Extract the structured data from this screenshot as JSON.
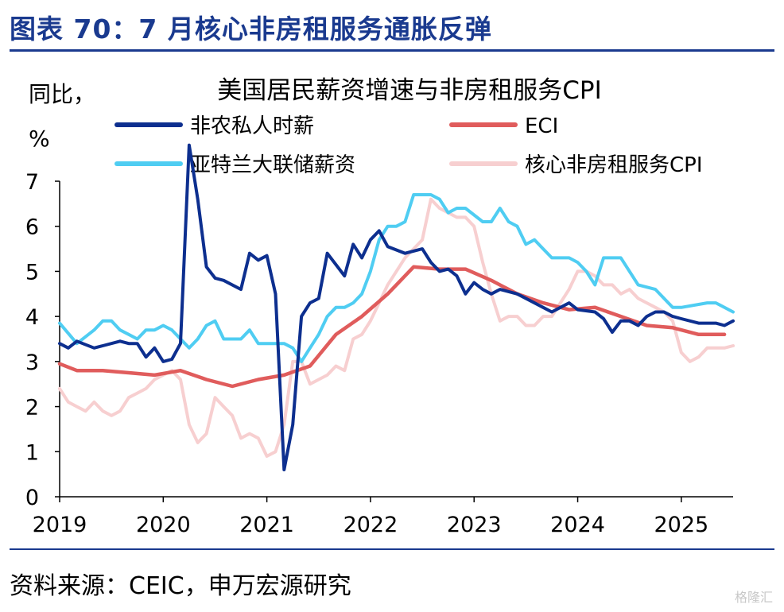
{
  "figure": {
    "title": "图表 70：7 月核心非房租服务通胀反弹",
    "source": "资料来源：CEIC，申万宏源研究",
    "watermark": "格隆汇"
  },
  "chart_data": {
    "type": "line",
    "title": "美国居民薪资增速与非房租服务CPI",
    "ylabel": "同比，%",
    "ylabel_lines": [
      "同比，",
      "%"
    ],
    "xlabel": "",
    "xlim": [
      "2019-01",
      "2025-07"
    ],
    "ylim": [
      0,
      7
    ],
    "y_ticks": [
      "0",
      "1",
      "2",
      "3",
      "4",
      "5",
      "6",
      "7"
    ],
    "x_ticks": [
      "2019",
      "2020",
      "2021",
      "2022",
      "2023",
      "2024",
      "2025"
    ],
    "grid": false,
    "legend_position": "top",
    "series": [
      {
        "name": "非农私人时薪",
        "color": "#0d2f8f",
        "x": [
          "2019-01",
          "2019-02",
          "2019-03",
          "2019-05",
          "2019-06",
          "2019-08",
          "2019-09",
          "2019-10",
          "2019-11",
          "2019-12",
          "2020-01",
          "2020-02",
          "2020-03",
          "2020-04",
          "2020-05",
          "2020-06",
          "2020-07",
          "2020-08",
          "2020-10",
          "2020-11",
          "2020-12",
          "2021-01",
          "2021-02",
          "2021-03",
          "2021-04",
          "2021-05",
          "2021-06",
          "2021-07",
          "2021-08",
          "2021-10",
          "2021-11",
          "2021-12",
          "2022-01",
          "2022-02",
          "2022-03",
          "2022-05",
          "2022-07",
          "2022-08",
          "2022-09",
          "2022-10",
          "2022-11",
          "2022-12",
          "2023-01",
          "2023-02",
          "2023-03",
          "2023-04",
          "2023-06",
          "2023-09",
          "2023-10",
          "2023-12",
          "2024-01",
          "2024-03",
          "2024-04",
          "2024-05",
          "2024-06",
          "2024-07",
          "2024-08",
          "2024-09",
          "2024-10",
          "2024-11",
          "2024-12",
          "2025-01",
          "2025-03",
          "2025-05",
          "2025-06",
          "2025-07"
        ],
        "values": [
          3.4,
          3.3,
          3.45,
          3.3,
          3.35,
          3.45,
          3.4,
          3.4,
          3.1,
          3.3,
          3.0,
          3.05,
          3.4,
          7.8,
          6.6,
          5.1,
          4.85,
          4.8,
          4.6,
          5.4,
          5.25,
          5.35,
          4.5,
          0.6,
          1.6,
          4.0,
          4.3,
          4.4,
          5.4,
          4.9,
          5.6,
          5.3,
          5.7,
          5.9,
          5.55,
          5.4,
          5.5,
          5.2,
          5.0,
          5.05,
          4.9,
          4.5,
          4.75,
          4.6,
          4.5,
          4.6,
          4.5,
          4.2,
          4.1,
          4.3,
          4.15,
          4.1,
          3.95,
          3.65,
          3.9,
          3.9,
          3.8,
          4.0,
          4.1,
          4.1,
          4.0,
          3.95,
          3.85,
          3.85,
          3.8,
          3.9
        ]
      },
      {
        "name": "ECI",
        "color": "#e05c5c",
        "x": [
          "2019-01",
          "2019-03",
          "2019-06",
          "2019-09",
          "2019-12",
          "2020-03",
          "2020-06",
          "2020-09",
          "2020-12",
          "2021-03",
          "2021-06",
          "2021-09",
          "2021-12",
          "2022-03",
          "2022-06",
          "2022-09",
          "2022-12",
          "2023-03",
          "2023-06",
          "2023-09",
          "2023-12",
          "2024-03",
          "2024-06",
          "2024-09",
          "2024-12",
          "2025-03",
          "2025-06"
        ],
        "values": [
          2.95,
          2.8,
          2.8,
          2.75,
          2.7,
          2.8,
          2.6,
          2.45,
          2.6,
          2.7,
          2.9,
          3.6,
          4.0,
          4.5,
          5.1,
          5.05,
          5.05,
          4.8,
          4.5,
          4.3,
          4.15,
          4.2,
          4.0,
          3.8,
          3.75,
          3.6,
          3.6
        ]
      },
      {
        "name": "亚特兰大联储薪资",
        "color": "#4fcdf2",
        "x": [
          "2019-01",
          "2019-03",
          "2019-05",
          "2019-06",
          "2019-07",
          "2019-08",
          "2019-09",
          "2019-10",
          "2019-11",
          "2019-12",
          "2020-01",
          "2020-02",
          "2020-04",
          "2020-05",
          "2020-06",
          "2020-07",
          "2020-08",
          "2020-09",
          "2020-10",
          "2020-11",
          "2020-12",
          "2021-01",
          "2021-02",
          "2021-03",
          "2021-04",
          "2021-05",
          "2021-06",
          "2021-07",
          "2021-08",
          "2021-09",
          "2021-10",
          "2021-11",
          "2021-12",
          "2022-01",
          "2022-02",
          "2022-03",
          "2022-04",
          "2022-05",
          "2022-06",
          "2022-08",
          "2022-09",
          "2022-10",
          "2022-11",
          "2022-12",
          "2023-02",
          "2023-03",
          "2023-04",
          "2023-05",
          "2023-06",
          "2023-07",
          "2023-08",
          "2023-09",
          "2023-10",
          "2023-12",
          "2024-01",
          "2024-02",
          "2024-03",
          "2024-04",
          "2024-06",
          "2024-08",
          "2024-10",
          "2024-12",
          "2025-01",
          "2025-04",
          "2025-05",
          "2025-07"
        ],
        "values": [
          3.85,
          3.4,
          3.7,
          3.9,
          3.9,
          3.7,
          3.6,
          3.5,
          3.7,
          3.7,
          3.8,
          3.7,
          3.3,
          3.5,
          3.8,
          3.9,
          3.5,
          3.5,
          3.5,
          3.7,
          3.4,
          3.4,
          3.4,
          3.4,
          3.3,
          3.0,
          3.3,
          3.6,
          4.0,
          4.2,
          4.2,
          4.3,
          4.5,
          5.0,
          5.7,
          6.0,
          6.0,
          6.1,
          6.7,
          6.7,
          6.6,
          6.3,
          6.4,
          6.4,
          6.1,
          6.1,
          6.4,
          6.1,
          6.0,
          5.6,
          5.7,
          5.5,
          5.3,
          5.3,
          5.2,
          5.0,
          4.7,
          5.3,
          5.3,
          4.7,
          4.6,
          4.2,
          4.2,
          4.3,
          4.3,
          4.1
        ]
      },
      {
        "name": "核心非房租服务CPI",
        "color": "#f7cfd0",
        "x": [
          "2019-01",
          "2019-02",
          "2019-03",
          "2019-04",
          "2019-05",
          "2019-06",
          "2019-07",
          "2019-08",
          "2019-09",
          "2019-10",
          "2019-11",
          "2019-12",
          "2020-01",
          "2020-02",
          "2020-03",
          "2020-04",
          "2020-05",
          "2020-06",
          "2020-07",
          "2020-08",
          "2020-09",
          "2020-10",
          "2020-11",
          "2020-12",
          "2021-01",
          "2021-02",
          "2021-03",
          "2021-04",
          "2021-05",
          "2021-06",
          "2021-07",
          "2021-08",
          "2021-09",
          "2021-10",
          "2021-11",
          "2021-12",
          "2022-01",
          "2022-02",
          "2022-03",
          "2022-04",
          "2022-05",
          "2022-06",
          "2022-07",
          "2022-08",
          "2022-09",
          "2022-10",
          "2022-11",
          "2022-12",
          "2023-01",
          "2023-02",
          "2023-03",
          "2023-04",
          "2023-05",
          "2023-06",
          "2023-07",
          "2023-08",
          "2023-09",
          "2023-10",
          "2023-11",
          "2023-12",
          "2024-01",
          "2024-02",
          "2024-03",
          "2024-04",
          "2024-05",
          "2024-06",
          "2024-07",
          "2024-08",
          "2024-09",
          "2024-10",
          "2024-11",
          "2024-12",
          "2025-01",
          "2025-02",
          "2025-03",
          "2025-04",
          "2025-05",
          "2025-06",
          "2025-07"
        ],
        "values": [
          2.4,
          2.1,
          2.0,
          1.9,
          2.1,
          1.9,
          1.8,
          1.9,
          2.2,
          2.3,
          2.4,
          2.6,
          2.7,
          2.8,
          2.6,
          1.6,
          1.2,
          1.4,
          2.2,
          2.0,
          1.8,
          1.3,
          1.4,
          1.3,
          0.9,
          1.0,
          1.6,
          3.0,
          3.0,
          2.5,
          2.6,
          2.7,
          2.9,
          2.8,
          3.5,
          3.6,
          3.9,
          4.3,
          4.7,
          5.0,
          5.3,
          5.5,
          5.7,
          6.6,
          6.4,
          6.3,
          6.2,
          6.2,
          6.0,
          5.2,
          4.5,
          3.9,
          4.0,
          4.0,
          3.8,
          3.8,
          4.0,
          4.0,
          4.3,
          4.6,
          5.0,
          5.0,
          4.9,
          4.7,
          4.7,
          4.5,
          4.6,
          4.4,
          4.3,
          4.2,
          4.1,
          3.9,
          3.2,
          3.0,
          3.1,
          3.3,
          3.3,
          3.3,
          3.35
        ]
      }
    ]
  }
}
